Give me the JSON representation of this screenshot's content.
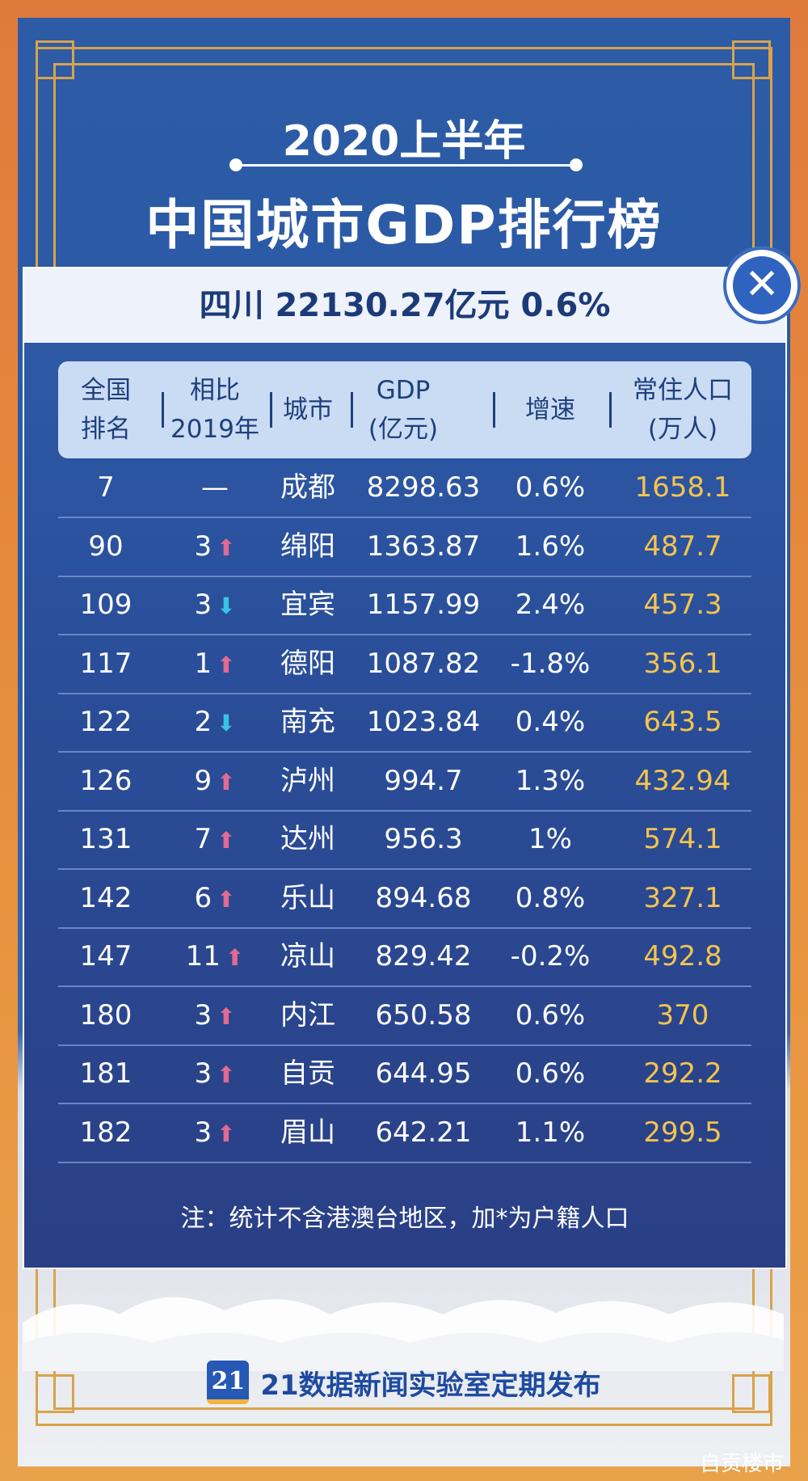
{
  "banner": {
    "title_year": "2020上半年",
    "title_main": "中国城市GDP排行榜"
  },
  "modal": {
    "header": "四川 22130.27亿元   0.6%",
    "close_label": "✕",
    "columns": [
      {
        "key": "rank",
        "label_1": "全国",
        "label_2": "排名"
      },
      {
        "key": "change",
        "label_1": "相比",
        "label_2": "2019年"
      },
      {
        "key": "city",
        "label_1": "城市",
        "label_2": ""
      },
      {
        "key": "gdp",
        "label_1": "GDP",
        "label_2": "(亿元)"
      },
      {
        "key": "growth",
        "label_1": "增速",
        "label_2": ""
      },
      {
        "key": "population",
        "label_1": "常住人口",
        "label_2": "(万人)"
      }
    ],
    "rows": [
      {
        "rank": "7",
        "change": "—",
        "dir": "none",
        "city": "成都",
        "gdp": "8298.63",
        "growth": "0.6%",
        "population": "1658.1"
      },
      {
        "rank": "90",
        "change": "3",
        "dir": "up",
        "city": "绵阳",
        "gdp": "1363.87",
        "growth": "1.6%",
        "population": "487.7"
      },
      {
        "rank": "109",
        "change": "3",
        "dir": "down",
        "city": "宜宾",
        "gdp": "1157.99",
        "growth": "2.4%",
        "population": "457.3"
      },
      {
        "rank": "117",
        "change": "1",
        "dir": "up",
        "city": "德阳",
        "gdp": "1087.82",
        "growth": "-1.8%",
        "population": "356.1"
      },
      {
        "rank": "122",
        "change": "2",
        "dir": "down",
        "city": "南充",
        "gdp": "1023.84",
        "growth": "0.4%",
        "population": "643.5"
      },
      {
        "rank": "126",
        "change": "9",
        "dir": "up",
        "city": "泸州",
        "gdp": "994.7",
        "growth": "1.3%",
        "population": "432.94"
      },
      {
        "rank": "131",
        "change": "7",
        "dir": "up",
        "city": "达州",
        "gdp": "956.3",
        "growth": "1%",
        "population": "574.1"
      },
      {
        "rank": "142",
        "change": "6",
        "dir": "up",
        "city": "乐山",
        "gdp": "894.68",
        "growth": "0.8%",
        "population": "327.1"
      },
      {
        "rank": "147",
        "change": "11",
        "dir": "up",
        "city": "凉山",
        "gdp": "829.42",
        "growth": "-0.2%",
        "population": "492.8"
      },
      {
        "rank": "180",
        "change": "3",
        "dir": "up",
        "city": "内江",
        "gdp": "650.58",
        "growth": "0.6%",
        "population": "370"
      },
      {
        "rank": "181",
        "change": "3",
        "dir": "up",
        "city": "自贡",
        "gdp": "644.95",
        "growth": "0.6%",
        "population": "292.2"
      },
      {
        "rank": "182",
        "change": "3",
        "dir": "up",
        "city": "眉山",
        "gdp": "642.21",
        "growth": "1.1%",
        "population": "299.5"
      }
    ],
    "note": "注：统计不含港澳台地区，加*为户籍人口"
  },
  "footer": {
    "logo_text": "21",
    "text": "21数据新闻实验室定期发布"
  },
  "watermark": "自贡楼市",
  "colors": {
    "frame": "#e07a3c",
    "panel": "#2d5ba6",
    "gold": "#d9a24a",
    "population_text": "#f3c44e",
    "arrow_up": "#e26a93",
    "arrow_down": "#38c3e6"
  }
}
